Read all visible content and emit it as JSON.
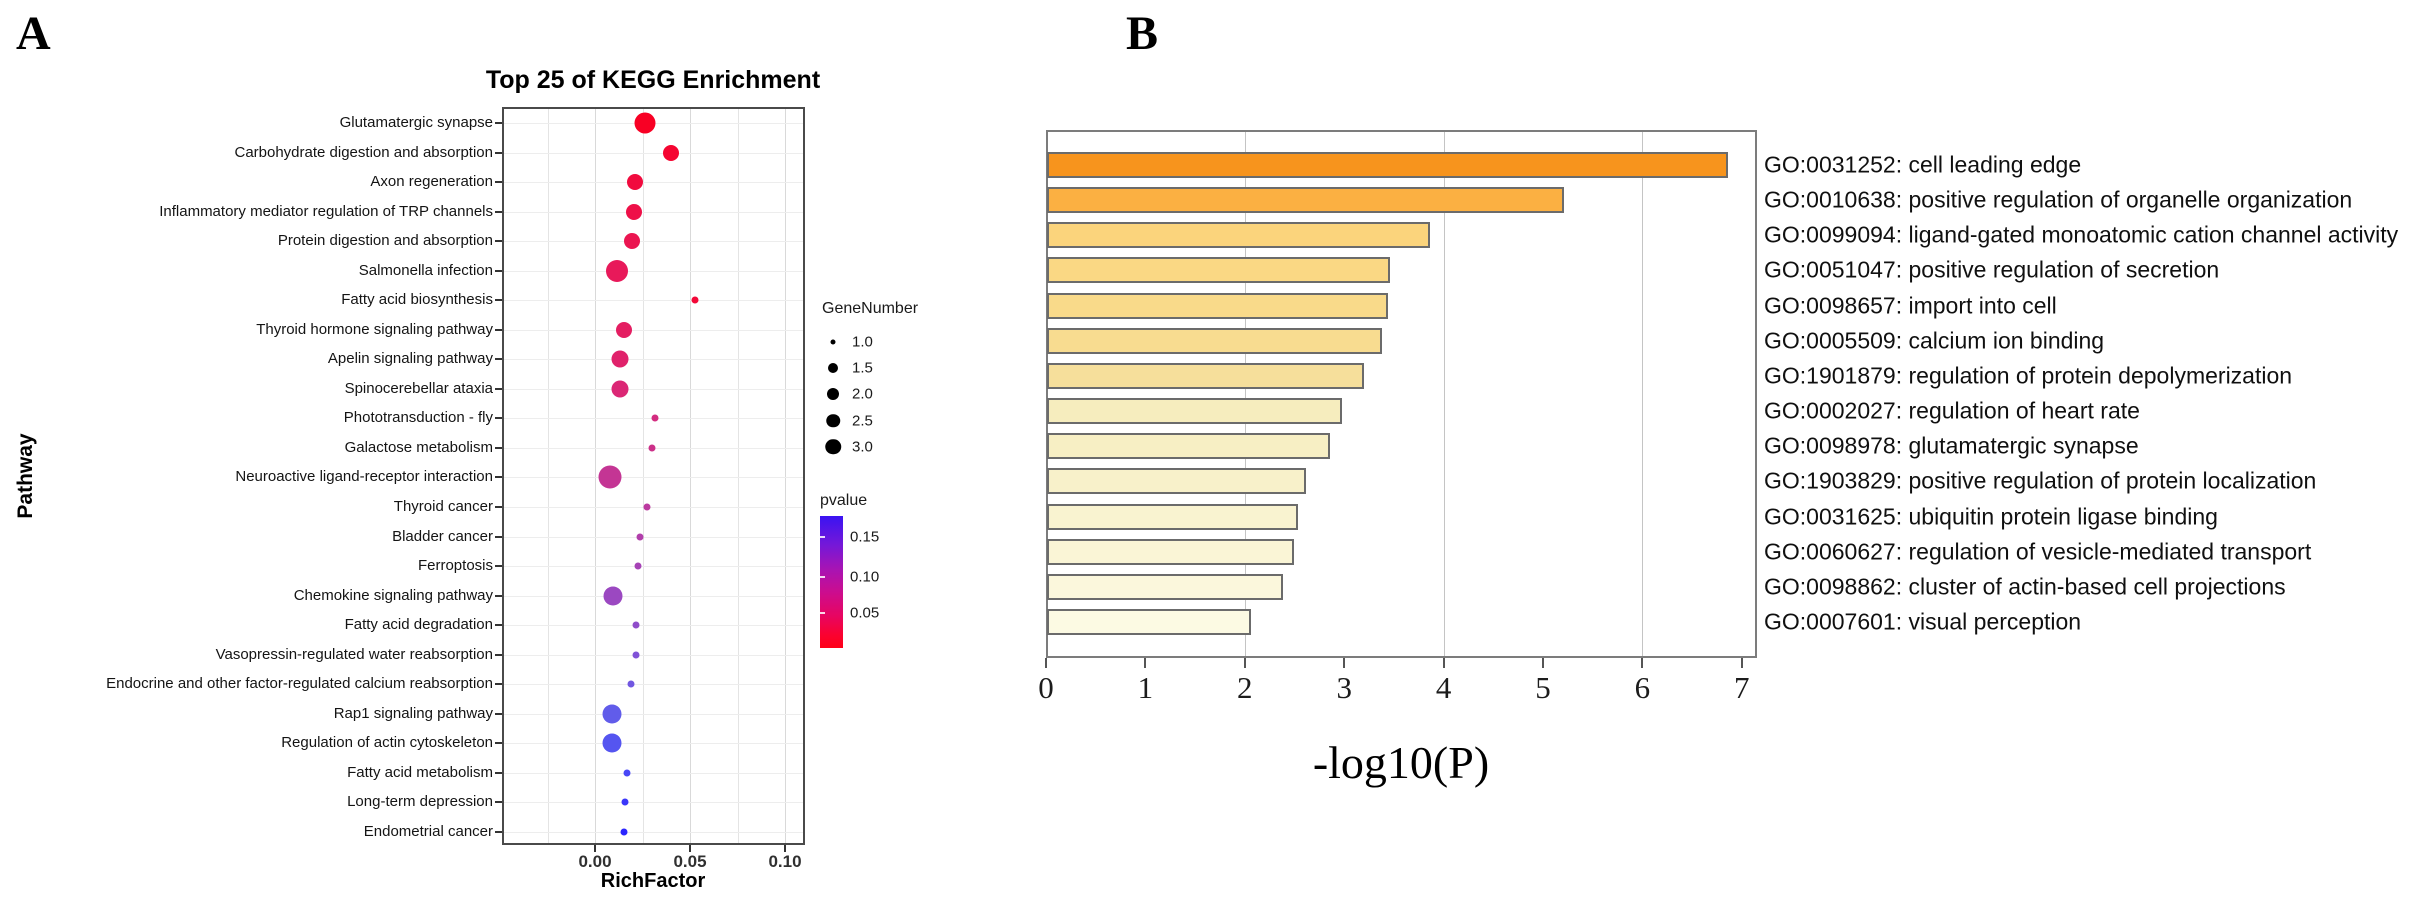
{
  "figure": {
    "panel_a_label": "A",
    "panel_b_label": "B"
  },
  "chart_data": [
    {
      "type": "scatter",
      "title": "Top 25 of KEGG Enrichment",
      "xlabel": "RichFactor",
      "ylabel": "Pathway",
      "xlim": [
        -0.049,
        0.11
      ],
      "x_ticks": [
        0.0,
        0.05,
        0.1
      ],
      "x_tick_labels": [
        "0.00",
        "0.05",
        "0.10"
      ],
      "grid": true,
      "legend": {
        "size_title": "GeneNumber",
        "size_values": [
          "1.0",
          "1.5",
          "2.0",
          "2.5",
          "3.0"
        ],
        "color_title": "pvalue",
        "color_tick_labels": [
          "0.15",
          "0.10",
          "0.05"
        ],
        "color_scale": {
          "low_pvalue": "#FF0018",
          "high_pvalue": "#3A13F2"
        }
      },
      "points": [
        {
          "pathway": "Glutamatergic synapse",
          "rich_factor": 0.0263,
          "gene_number": 3.0,
          "color": "#F80024",
          "d": 21
        },
        {
          "pathway": "Carbohydrate digestion and absorption",
          "rich_factor": 0.04,
          "gene_number": 2.0,
          "color": "#F50531",
          "d": 16
        },
        {
          "pathway": "Axon regeneration",
          "rich_factor": 0.0211,
          "gene_number": 2.0,
          "color": "#F10B3E",
          "d": 16
        },
        {
          "pathway": "Inflammatory mediator regulation of TRP channels",
          "rich_factor": 0.0205,
          "gene_number": 2.0,
          "color": "#EE1048",
          "d": 16
        },
        {
          "pathway": "Protein digestion and absorption",
          "rich_factor": 0.0195,
          "gene_number": 2.0,
          "color": "#EB1551",
          "d": 16
        },
        {
          "pathway": "Salmonella infection",
          "rich_factor": 0.0116,
          "gene_number": 3.0,
          "color": "#E8195A",
          "d": 22
        },
        {
          "pathway": "Fatty acid biosynthesis",
          "rich_factor": 0.0526,
          "gene_number": 1.0,
          "color": "#F30838",
          "d": 7
        },
        {
          "pathway": "Thyroid hormone signaling pathway",
          "rich_factor": 0.0153,
          "gene_number": 2.0,
          "color": "#E41E62",
          "d": 16
        },
        {
          "pathway": "Apelin signaling pathway",
          "rich_factor": 0.0132,
          "gene_number": 2.0,
          "color": "#E0226B",
          "d": 17
        },
        {
          "pathway": "Spinocerebellar ataxia",
          "rich_factor": 0.0132,
          "gene_number": 2.0,
          "color": "#DB2775",
          "d": 17
        },
        {
          "pathway": "Phototransduction - fly",
          "rich_factor": 0.0316,
          "gene_number": 1.0,
          "color": "#D32C80",
          "d": 7
        },
        {
          "pathway": "Galactose metabolism",
          "rich_factor": 0.03,
          "gene_number": 1.0,
          "color": "#CC3089",
          "d": 7
        },
        {
          "pathway": "Neuroactive ligand-receptor interaction",
          "rich_factor": 0.0079,
          "gene_number": 3.0,
          "color": "#C43594",
          "d": 23
        },
        {
          "pathway": "Thyroid cancer",
          "rich_factor": 0.0274,
          "gene_number": 1.0,
          "color": "#BB3A9F",
          "d": 7
        },
        {
          "pathway": "Bladder cancer",
          "rich_factor": 0.0237,
          "gene_number": 1.0,
          "color": "#B13EAB",
          "d": 7
        },
        {
          "pathway": "Ferroptosis",
          "rich_factor": 0.0226,
          "gene_number": 1.0,
          "color": "#A643B6",
          "d": 7
        },
        {
          "pathway": "Chemokine signaling pathway",
          "rich_factor": 0.0095,
          "gene_number": 2.5,
          "color": "#9B48C1",
          "d": 19
        },
        {
          "pathway": "Fatty acid degradation",
          "rich_factor": 0.0216,
          "gene_number": 1.0,
          "color": "#8F4DCA",
          "d": 7
        },
        {
          "pathway": "Vasopressin-regulated water reabsorption",
          "rich_factor": 0.0216,
          "gene_number": 1.0,
          "color": "#8052D7",
          "d": 7
        },
        {
          "pathway": "Endocrine and other factor-regulated calcium reabsorption",
          "rich_factor": 0.0189,
          "gene_number": 1.0,
          "color": "#7157E1",
          "d": 7
        },
        {
          "pathway": "Rap1 signaling pathway",
          "rich_factor": 0.0089,
          "gene_number": 2.5,
          "color": "#615CEA",
          "d": 19
        },
        {
          "pathway": "Regulation of actin cytoskeleton",
          "rich_factor": 0.0089,
          "gene_number": 2.5,
          "color": "#5555F0",
          "d": 19
        },
        {
          "pathway": "Fatty acid metabolism",
          "rich_factor": 0.0168,
          "gene_number": 1.0,
          "color": "#4847F6",
          "d": 7
        },
        {
          "pathway": "Long-term depression",
          "rich_factor": 0.0158,
          "gene_number": 1.0,
          "color": "#3A36FA",
          "d": 7
        },
        {
          "pathway": "Endometrial cancer",
          "rich_factor": 0.0153,
          "gene_number": 1.0,
          "color": "#2B25FE",
          "d": 7
        }
      ]
    },
    {
      "type": "bar",
      "orientation": "horizontal",
      "xlabel": "-log10(P)",
      "xlim": [
        0,
        7.15
      ],
      "x_ticks": [
        0,
        1,
        2,
        3,
        4,
        5,
        6,
        7
      ],
      "x_tick_labels": [
        "0",
        "1",
        "2",
        "3",
        "4",
        "5",
        "6",
        "7"
      ],
      "gridline_values": [
        2,
        4,
        6
      ],
      "bars": [
        {
          "term": "GO:0031252: cell leading edge",
          "value": 6.85,
          "color": "#F7941D"
        },
        {
          "term": "GO:0010638: positive regulation of organelle organization",
          "value": 5.2,
          "color": "#FBB042"
        },
        {
          "term": "GO:0099094: ligand-gated monoatomic cation channel activity",
          "value": 3.85,
          "color": "#FBD47C"
        },
        {
          "term": "GO:0051047: positive regulation of secretion",
          "value": 3.45,
          "color": "#FAD884"
        },
        {
          "term": "GO:0098657: import into cell",
          "value": 3.43,
          "color": "#F9DA8A"
        },
        {
          "term": "GO:0005509: calcium ion binding",
          "value": 3.37,
          "color": "#F8DC90"
        },
        {
          "term": "GO:1901879: regulation of protein depolymerization",
          "value": 3.19,
          "color": "#F6DF9B"
        },
        {
          "term": "GO:0002027: regulation of heart rate",
          "value": 2.97,
          "color": "#F6EDBE"
        },
        {
          "term": "GO:0098978: glutamatergic synapse",
          "value": 2.85,
          "color": "#F7EFC4"
        },
        {
          "term": "GO:1903829: positive regulation of protein localization",
          "value": 2.61,
          "color": "#F8F1CA"
        },
        {
          "term": "GO:0031625: ubiquitin protein ligase binding",
          "value": 2.53,
          "color": "#F9F3D0"
        },
        {
          "term": "GO:0060627: regulation of vesicle-mediated transport",
          "value": 2.48,
          "color": "#FAF5D6"
        },
        {
          "term": "GO:0098862: cluster of actin-based cell projections",
          "value": 2.37,
          "color": "#FBF7DC"
        },
        {
          "term": "GO:0007601: visual perception",
          "value": 2.05,
          "color": "#FCFAE3"
        }
      ]
    }
  ]
}
